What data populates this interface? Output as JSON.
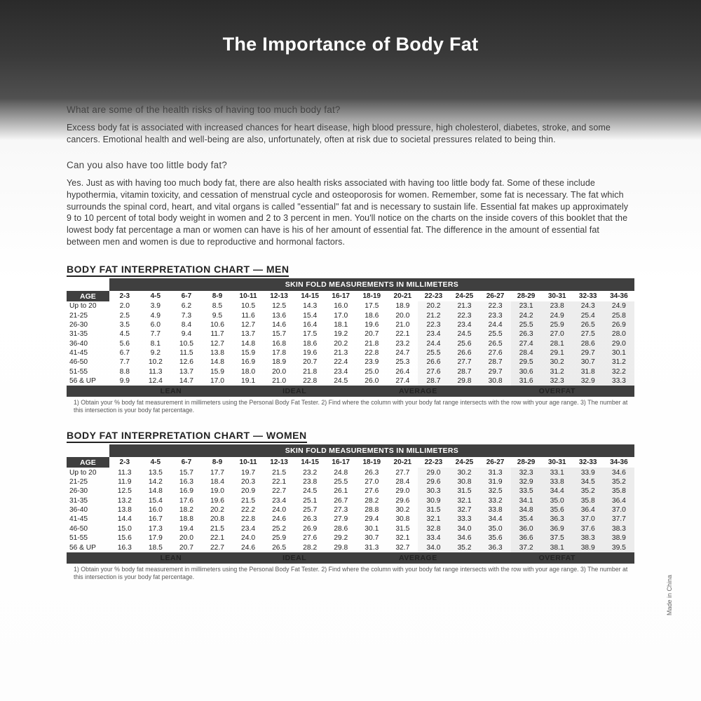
{
  "title": "The Importance of Body Fat",
  "qa1": {
    "question": "What are some of the health risks of having too much body fat?",
    "answer": "Excess body fat is associated with increased chances for heart disease, high blood pressure, high cholesterol, diabetes, stroke, and some cancers. Emotional health and well-being are also, unfortunately, often at risk due to societal pressures related to being thin."
  },
  "qa2": {
    "question": "Can you also have too little body fat?",
    "answer": "Yes. Just as with having too much body fat, there are also health risks associated with having too little body fat. Some of these include hypothermia, vitamin toxicity, and cessation of menstrual cycle and osteoporosis for women. Remember, some fat is necessary. The fat which surrounds the spinal cord, heart, and vital organs is called \"essential\" fat and is necessary to sustain life. Essential fat makes up approximately 9 to 10 percent of total body weight in women and 2 to 3 percent in men. You'll notice on the charts on the inside covers of this booklet that the lowest body fat percentage a man or women can have is his of her amount of essential fat. The difference in the amount of essential fat between men and women is due to reproductive and hormonal factors."
  },
  "skin_header": "SKIN FOLD MEASUREMENTS IN MILLIMETERS",
  "age_label": "AGE",
  "columns": [
    "2-3",
    "4-5",
    "6-7",
    "8-9",
    "10-11",
    "12-13",
    "14-15",
    "16-17",
    "18-19",
    "20-21",
    "22-23",
    "24-25",
    "26-27",
    "28-29",
    "30-31",
    "32-33",
    "34-36"
  ],
  "ages": [
    "Up to 20",
    "21-25",
    "26-30",
    "31-35",
    "36-40",
    "41-45",
    "46-50",
    "51-55",
    "56 & UP"
  ],
  "categories": [
    "LEAN",
    "IDEAL",
    "AVERAGE",
    "OVERFAT"
  ],
  "men": {
    "title": "BODY FAT INTERPRETATION CHART — MEN",
    "rows": [
      [
        "2.0",
        "3.9",
        "6.2",
        "8.5",
        "10.5",
        "12.5",
        "14.3",
        "16.0",
        "17.5",
        "18.9",
        "20.2",
        "21.3",
        "22.3",
        "23.1",
        "23.8",
        "24.3",
        "24.9"
      ],
      [
        "2.5",
        "4.9",
        "7.3",
        "9.5",
        "11.6",
        "13.6",
        "15.4",
        "17.0",
        "18.6",
        "20.0",
        "21.2",
        "22.3",
        "23.3",
        "24.2",
        "24.9",
        "25.4",
        "25.8"
      ],
      [
        "3.5",
        "6.0",
        "8.4",
        "10.6",
        "12.7",
        "14.6",
        "16.4",
        "18.1",
        "19.6",
        "21.0",
        "22.3",
        "23.4",
        "24.4",
        "25.5",
        "25.9",
        "26.5",
        "26.9"
      ],
      [
        "4.5",
        "7.7",
        "9.4",
        "11.7",
        "13.7",
        "15.7",
        "17.5",
        "19.2",
        "20.7",
        "22.1",
        "23.4",
        "24.5",
        "25.5",
        "26.3",
        "27.0",
        "27.5",
        "28.0"
      ],
      [
        "5.6",
        "8.1",
        "10.5",
        "12.7",
        "14.8",
        "16.8",
        "18.6",
        "20.2",
        "21.8",
        "23.2",
        "24.4",
        "25.6",
        "26.5",
        "27.4",
        "28.1",
        "28.6",
        "29.0"
      ],
      [
        "6.7",
        "9.2",
        "11.5",
        "13.8",
        "15.9",
        "17.8",
        "19.6",
        "21.3",
        "22.8",
        "24.7",
        "25.5",
        "26.6",
        "27.6",
        "28.4",
        "29.1",
        "29.7",
        "30.1"
      ],
      [
        "7.7",
        "10.2",
        "12.6",
        "14.8",
        "16.9",
        "18.9",
        "20.7",
        "22.4",
        "23.9",
        "25.3",
        "26.6",
        "27.7",
        "28.7",
        "29.5",
        "30.2",
        "30.7",
        "31.2"
      ],
      [
        "8.8",
        "11.3",
        "13.7",
        "15.9",
        "18.0",
        "20.0",
        "21.8",
        "23.4",
        "25.0",
        "26.4",
        "27.6",
        "28.7",
        "29.7",
        "30.6",
        "31.2",
        "31.8",
        "32.2"
      ],
      [
        "9.9",
        "12.4",
        "14.7",
        "17.0",
        "19.1",
        "21.0",
        "22.8",
        "24.5",
        "26.0",
        "27.4",
        "28.7",
        "29.8",
        "30.8",
        "31.6",
        "32.3",
        "32.9",
        "33.3"
      ]
    ]
  },
  "women": {
    "title": "BODY FAT INTERPRETATION CHART — WOMEN",
    "rows": [
      [
        "11.3",
        "13.5",
        "15.7",
        "17.7",
        "19.7",
        "21.5",
        "23.2",
        "24.8",
        "26.3",
        "27.7",
        "29.0",
        "30.2",
        "31.3",
        "32.3",
        "33.1",
        "33.9",
        "34.6"
      ],
      [
        "11.9",
        "14.2",
        "16.3",
        "18.4",
        "20.3",
        "22.1",
        "23.8",
        "25.5",
        "27.0",
        "28.4",
        "29.6",
        "30.8",
        "31.9",
        "32.9",
        "33.8",
        "34.5",
        "35.2"
      ],
      [
        "12.5",
        "14.8",
        "16.9",
        "19.0",
        "20.9",
        "22.7",
        "24.5",
        "26.1",
        "27.6",
        "29.0",
        "30.3",
        "31.5",
        "32.5",
        "33.5",
        "34.4",
        "35.2",
        "35.8"
      ],
      [
        "13.2",
        "15.4",
        "17.6",
        "19.6",
        "21.5",
        "23.4",
        "25.1",
        "26.7",
        "28.2",
        "29.6",
        "30.9",
        "32.1",
        "33.2",
        "34.1",
        "35.0",
        "35.8",
        "36.4"
      ],
      [
        "13.8",
        "16.0",
        "18.2",
        "20.2",
        "22.2",
        "24.0",
        "25.7",
        "27.3",
        "28.8",
        "30.2",
        "31.5",
        "32.7",
        "33.8",
        "34.8",
        "35.6",
        "36.4",
        "37.0"
      ],
      [
        "14.4",
        "16.7",
        "18.8",
        "20.8",
        "22.8",
        "24.6",
        "26.3",
        "27.9",
        "29.4",
        "30.8",
        "32.1",
        "33.3",
        "34.4",
        "35.4",
        "36.3",
        "37.0",
        "37.7"
      ],
      [
        "15.0",
        "17.3",
        "19.4",
        "21.5",
        "23.4",
        "25.2",
        "26.9",
        "28.6",
        "30.1",
        "31.5",
        "32.8",
        "34.0",
        "35.0",
        "36.0",
        "36.9",
        "37.6",
        "38.3"
      ],
      [
        "15.6",
        "17.9",
        "20.0",
        "22.1",
        "24.0",
        "25.9",
        "27.6",
        "29.2",
        "30.7",
        "32.1",
        "33.4",
        "34.6",
        "35.6",
        "36.6",
        "37.5",
        "38.3",
        "38.9"
      ],
      [
        "16.3",
        "18.5",
        "20.7",
        "22.7",
        "24.6",
        "26.5",
        "28.2",
        "29.8",
        "31.3",
        "32.7",
        "34.0",
        "35.2",
        "36.3",
        "37.2",
        "38.1",
        "38.9",
        "39.5"
      ]
    ]
  },
  "footnote": "1) Obtain your % body fat measurement in millimeters using the Personal Body Fat Tester. 2) Find where the column with your body fat range intersects with the row with your age range. 3) The number at this intersection is your body fat percentage.",
  "made_in": "Made in China",
  "colors": {
    "header_bg": "#3f3f3f",
    "header_text": "#ffffff",
    "body_text": "#2a2a2a",
    "page_bg": "#ffffff"
  }
}
